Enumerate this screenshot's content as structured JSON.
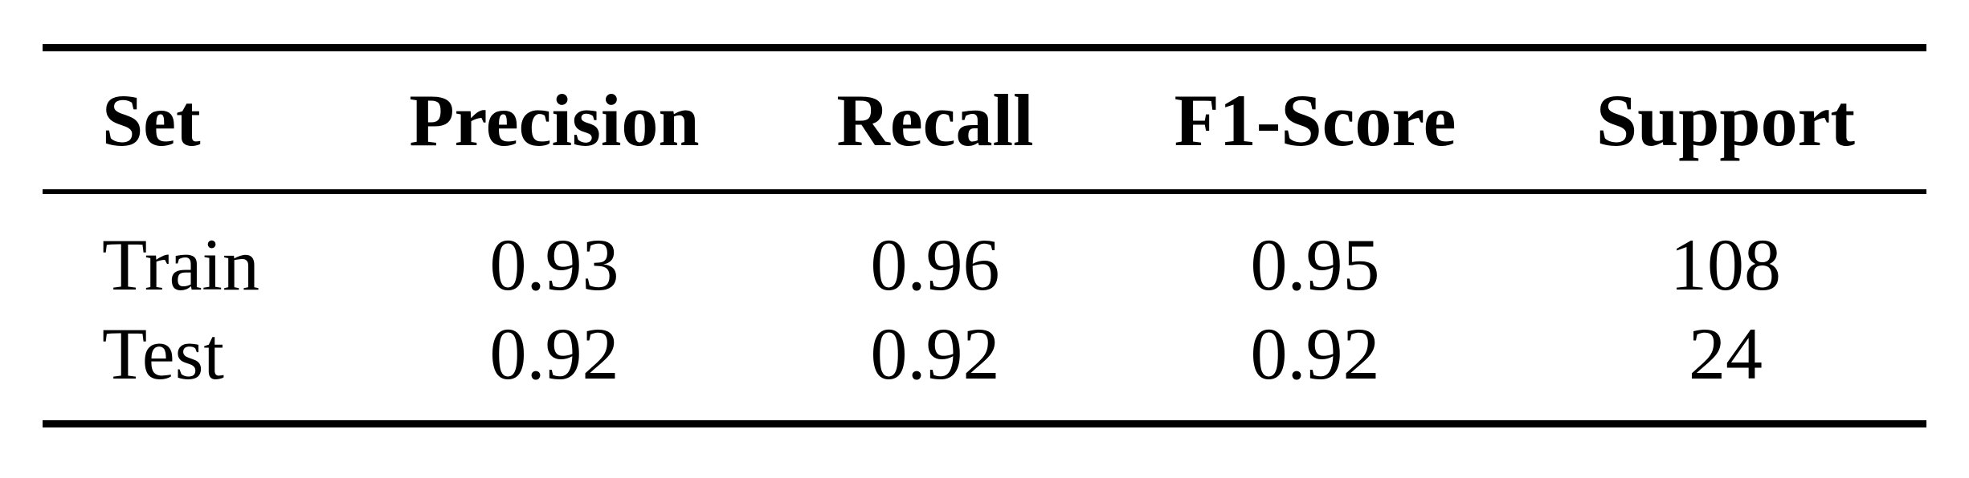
{
  "table": {
    "headers": [
      "Set",
      "Precision",
      "Recall",
      "F1-Score",
      "Support"
    ],
    "rows": [
      [
        "Train",
        "0.93",
        "0.96",
        "0.95",
        "108"
      ],
      [
        "Test",
        "0.92",
        "0.92",
        "0.92",
        "24"
      ]
    ]
  }
}
